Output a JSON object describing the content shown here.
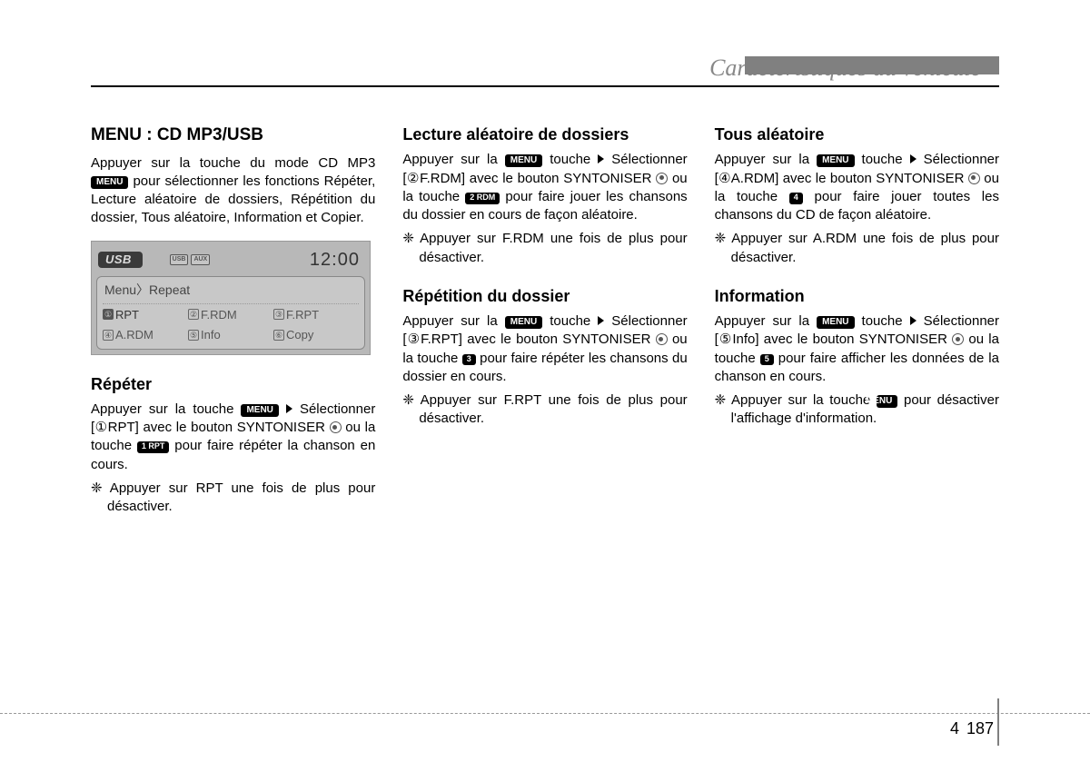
{
  "header": {
    "title": "Caractéristiques du véhicule"
  },
  "buttons": {
    "menu": "MENU",
    "rpt1": "1 RPT",
    "rdm2": "2 RDM",
    "b3": "3",
    "b4": "4",
    "b5": "5"
  },
  "lcd": {
    "usb": "USB",
    "mini1": "USB",
    "mini2": "AUX",
    "time": "12:00",
    "breadcrumb": "Menu〉Repeat",
    "items": [
      {
        "n": "①",
        "label": "RPT",
        "sel": true
      },
      {
        "n": "②",
        "label": "F.RDM"
      },
      {
        "n": "③",
        "label": "F.RPT"
      },
      {
        "n": "④",
        "label": "A.RDM"
      },
      {
        "n": "⑤",
        "label": "Info"
      },
      {
        "n": "⑥",
        "label": "Copy"
      }
    ]
  },
  "col1": {
    "h_main": "MENU : CD MP3/USB",
    "p1a": "Appuyer sur la touche du mode CD MP3 ",
    "p1b": " pour sélectionner les fonctions Répéter, Lecture aléatoire de dossiers, Répétition du dossier, Tous aléatoire, Information et Copier.",
    "h_rep": "Répéter",
    "p2a": "Appuyer sur la touche ",
    "p2b": "Sélectionner [①RPT] avec le bouton SYNTONISER ",
    "p2c": " ou la touche ",
    "p2d": " pour faire répéter la chanson en cours.",
    "n1": "❈ Appuyer sur RPT une fois de plus pour désactiver."
  },
  "col2": {
    "h_lec": "Lecture aléatoire de dossiers",
    "p1a": "Appuyer sur la ",
    "p1b": " touche ",
    "p1c": "Sélectionner [②F.RDM] avec le bouton SYNTONISER ",
    "p1d": " ou la touche ",
    "p1e": " pour faire jouer les chansons du dossier en cours de façon aléatoire.",
    "n1": "❈ Appuyer sur F.RDM une fois de plus pour désactiver.",
    "h_repd": "Répétition du dossier",
    "p2a": "Appuyer sur la ",
    "p2b": " touche ",
    "p2c": "Sélectionner [③F.RPT] avec le bouton SYNTONISER ",
    "p2d": " ou la touche ",
    "p2e": " pour faire répéter les chansons du dossier en cours.",
    "n2": "❈ Appuyer sur F.RPT une fois de plus pour désactiver."
  },
  "col3": {
    "h_tous": "Tous aléatoire",
    "p1a": "Appuyer sur la ",
    "p1b": " touche ",
    "p1c": "Sélectionner [④A.RDM] avec le bouton SYNTONISER ",
    "p1d": " ou la touche ",
    "p1e": " pour faire jouer toutes les chansons du CD de façon aléatoire.",
    "n1": "❈ Appuyer sur A.RDM une fois de plus pour désactiver.",
    "h_info": "Information",
    "p2a": "Appuyer sur la ",
    "p2b": " touche ",
    "p2c": "Sélectionner [⑤Info] avec le bouton SYNTONISER ",
    "p2d": " ou la touche ",
    "p2e": " pour faire afficher les données de la chanson en cours.",
    "n2a": "❈ Appuyer sur la touche ",
    "n2b": " pour désactiver l'affichage d'information."
  },
  "footer": {
    "chapter": "4",
    "page": "187"
  }
}
